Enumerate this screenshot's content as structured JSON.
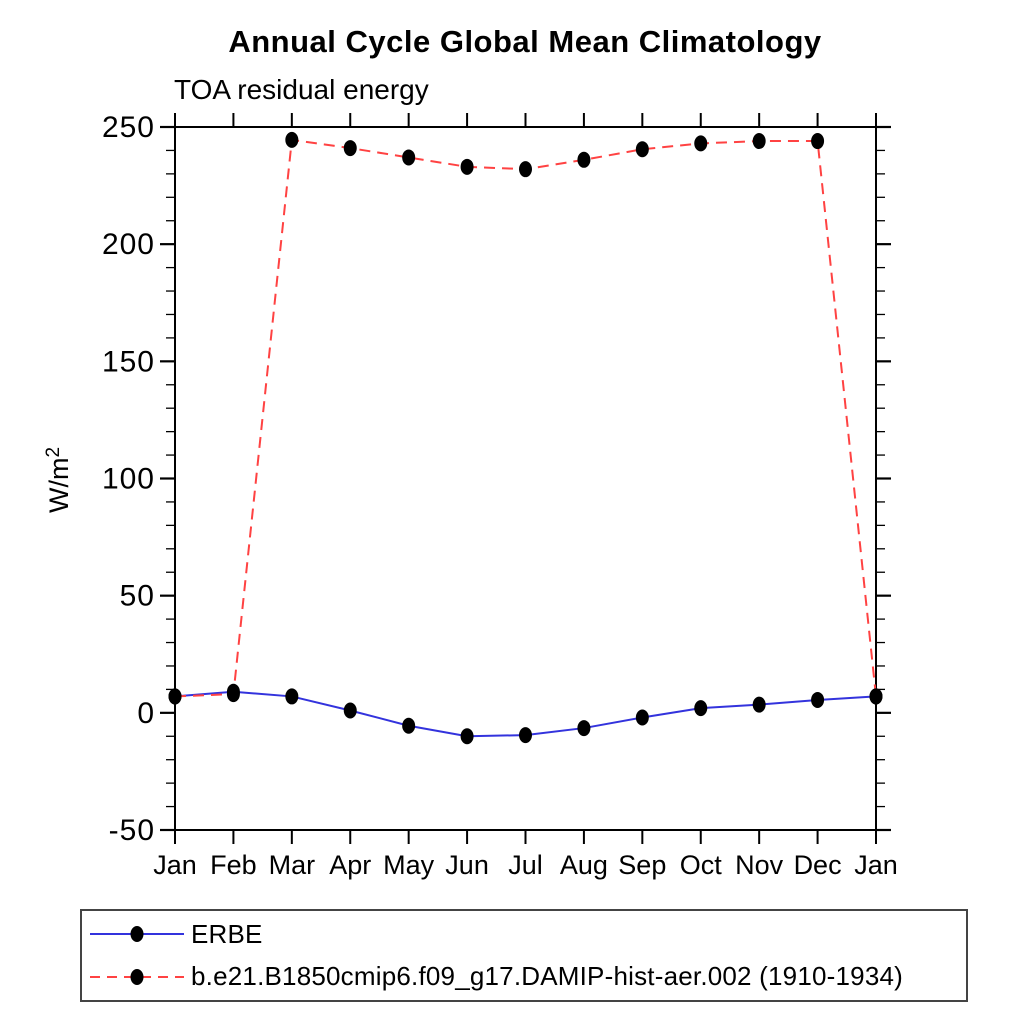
{
  "title": "Annual Cycle Global Mean Climatology",
  "subtitle": "TOA residual energy",
  "y_axis_title_base": "W/m",
  "y_axis_title_exponent": "2",
  "colors": {
    "erbe_line": "#3333dd",
    "model_line": "#ff4242",
    "marker": "#000000",
    "axis": "#000000"
  },
  "chart_data": {
    "type": "line",
    "categories": [
      "Jan",
      "Feb",
      "Mar",
      "Apr",
      "May",
      "Jun",
      "Jul",
      "Aug",
      "Sep",
      "Oct",
      "Nov",
      "Dec",
      "Jan"
    ],
    "series": [
      {
        "key": "erbe",
        "name": "ERBE",
        "values": [
          7,
          9,
          7,
          1,
          -5.5,
          -10,
          -9.5,
          -6.5,
          -2,
          2,
          3.5,
          5.5,
          7
        ],
        "color": "#3333dd",
        "style": "solid",
        "marker": "filled-circle",
        "marker_color": "#000000"
      },
      {
        "key": "model",
        "name": "b.e21.B1850cmip6.f09_g17.DAMIP-hist-aer.002 (1910-1934)",
        "values": [
          7,
          8,
          244.5,
          241,
          237,
          233,
          232,
          236,
          240.5,
          243,
          244,
          244,
          7
        ],
        "color": "#ff4242",
        "style": "dashed",
        "marker": "filled-circle",
        "marker_color": "#000000"
      }
    ],
    "title": "Annual Cycle Global Mean Climatology",
    "subtitle": "TOA residual energy",
    "xlabel": "",
    "ylabel": "W/m2",
    "ylim": [
      -50,
      250
    ],
    "y_major_step": 50,
    "y_minor_step": 10,
    "y_tick_labels": [
      "-50",
      "0",
      "50",
      "100",
      "150",
      "200",
      "250"
    ],
    "grid": false,
    "legend_position": "bottom-left-box"
  }
}
